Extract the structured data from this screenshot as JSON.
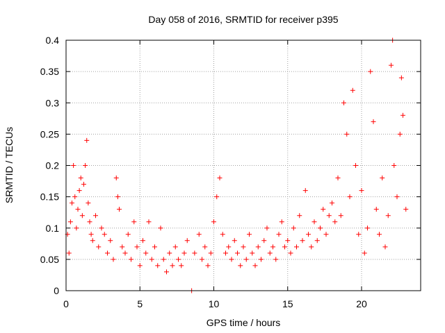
{
  "chart_data": {
    "type": "scatter",
    "title": "Day 058 of 2016, SRMTID for receiver p395",
    "xlabel": "GPS time / hours",
    "ylabel": "SRMTID / TECUs",
    "xlim": [
      0,
      24
    ],
    "ylim": [
      0,
      0.4
    ],
    "x_ticks": [
      0,
      5,
      10,
      15,
      20
    ],
    "x_tick_labels": [
      "0",
      "5",
      "10",
      "15",
      "20"
    ],
    "y_ticks": [
      0,
      0.05,
      0.1,
      0.15,
      0.2,
      0.25,
      0.3,
      0.35,
      0.4
    ],
    "y_tick_labels": [
      "0",
      "0.05",
      "0.1",
      "0.15",
      "0.2",
      "0.25",
      "0.3",
      "0.35",
      "0.4"
    ],
    "grid": true,
    "marker": "+",
    "color": "#ff0000",
    "series": [
      {
        "name": "SRMTID",
        "points": [
          [
            0.1,
            0.09
          ],
          [
            0.2,
            0.06
          ],
          [
            0.3,
            0.11
          ],
          [
            0.4,
            0.14
          ],
          [
            0.5,
            0.2
          ],
          [
            0.6,
            0.15
          ],
          [
            0.7,
            0.1
          ],
          [
            0.8,
            0.13
          ],
          [
            0.9,
            0.16
          ],
          [
            1.0,
            0.18
          ],
          [
            1.1,
            0.12
          ],
          [
            1.2,
            0.17
          ],
          [
            1.3,
            0.2
          ],
          [
            1.4,
            0.24
          ],
          [
            1.5,
            0.14
          ],
          [
            1.6,
            0.11
          ],
          [
            1.7,
            0.09
          ],
          [
            1.8,
            0.08
          ],
          [
            2.0,
            0.12
          ],
          [
            2.2,
            0.07
          ],
          [
            2.4,
            0.1
          ],
          [
            2.6,
            0.09
          ],
          [
            2.8,
            0.06
          ],
          [
            3.0,
            0.08
          ],
          [
            3.2,
            0.05
          ],
          [
            3.4,
            0.18
          ],
          [
            3.5,
            0.15
          ],
          [
            3.6,
            0.13
          ],
          [
            3.8,
            0.07
          ],
          [
            4.0,
            0.06
          ],
          [
            4.2,
            0.09
          ],
          [
            4.4,
            0.05
          ],
          [
            4.6,
            0.11
          ],
          [
            4.8,
            0.07
          ],
          [
            5.0,
            0.04
          ],
          [
            5.2,
            0.08
          ],
          [
            5.4,
            0.06
          ],
          [
            5.6,
            0.11
          ],
          [
            5.8,
            0.05
          ],
          [
            6.0,
            0.07
          ],
          [
            6.2,
            0.04
          ],
          [
            6.4,
            0.1
          ],
          [
            6.6,
            0.05
          ],
          [
            6.8,
            0.03
          ],
          [
            7.0,
            0.06
          ],
          [
            7.2,
            0.04
          ],
          [
            7.4,
            0.07
          ],
          [
            7.6,
            0.05
          ],
          [
            7.8,
            0.04
          ],
          [
            8.0,
            0.06
          ],
          [
            8.2,
            0.08
          ],
          [
            8.5,
            0.0
          ],
          [
            8.7,
            0.06
          ],
          [
            9.0,
            0.09
          ],
          [
            9.2,
            0.05
          ],
          [
            9.4,
            0.07
          ],
          [
            9.6,
            0.04
          ],
          [
            9.8,
            0.06
          ],
          [
            10.0,
            0.11
          ],
          [
            10.2,
            0.15
          ],
          [
            10.4,
            0.18
          ],
          [
            10.6,
            0.09
          ],
          [
            10.8,
            0.06
          ],
          [
            11.0,
            0.07
          ],
          [
            11.2,
            0.05
          ],
          [
            11.4,
            0.08
          ],
          [
            11.6,
            0.06
          ],
          [
            11.8,
            0.04
          ],
          [
            12.0,
            0.07
          ],
          [
            12.2,
            0.05
          ],
          [
            12.4,
            0.09
          ],
          [
            12.6,
            0.06
          ],
          [
            12.8,
            0.04
          ],
          [
            13.0,
            0.07
          ],
          [
            13.2,
            0.05
          ],
          [
            13.4,
            0.08
          ],
          [
            13.6,
            0.1
          ],
          [
            13.8,
            0.06
          ],
          [
            14.0,
            0.07
          ],
          [
            14.2,
            0.05
          ],
          [
            14.4,
            0.09
          ],
          [
            14.6,
            0.11
          ],
          [
            14.8,
            0.07
          ],
          [
            15.0,
            0.08
          ],
          [
            15.2,
            0.06
          ],
          [
            15.4,
            0.1
          ],
          [
            15.6,
            0.07
          ],
          [
            15.8,
            0.12
          ],
          [
            16.0,
            0.08
          ],
          [
            16.2,
            0.16
          ],
          [
            16.4,
            0.09
          ],
          [
            16.6,
            0.07
          ],
          [
            16.8,
            0.11
          ],
          [
            17.0,
            0.08
          ],
          [
            17.2,
            0.1
          ],
          [
            17.4,
            0.13
          ],
          [
            17.6,
            0.09
          ],
          [
            17.8,
            0.12
          ],
          [
            18.0,
            0.14
          ],
          [
            18.2,
            0.11
          ],
          [
            18.4,
            0.18
          ],
          [
            18.6,
            0.12
          ],
          [
            18.8,
            0.3
          ],
          [
            19.0,
            0.25
          ],
          [
            19.2,
            0.15
          ],
          [
            19.4,
            0.32
          ],
          [
            19.6,
            0.2
          ],
          [
            19.8,
            0.09
          ],
          [
            20.0,
            0.16
          ],
          [
            20.2,
            0.06
          ],
          [
            20.4,
            0.1
          ],
          [
            20.6,
            0.35
          ],
          [
            20.8,
            0.27
          ],
          [
            21.0,
            0.13
          ],
          [
            21.2,
            0.09
          ],
          [
            21.4,
            0.18
          ],
          [
            21.6,
            0.07
          ],
          [
            21.8,
            0.12
          ],
          [
            22.0,
            0.36
          ],
          [
            22.1,
            0.4
          ],
          [
            22.2,
            0.2
          ],
          [
            22.4,
            0.15
          ],
          [
            22.6,
            0.25
          ],
          [
            22.7,
            0.34
          ],
          [
            22.8,
            0.28
          ],
          [
            23.0,
            0.13
          ]
        ]
      }
    ]
  }
}
